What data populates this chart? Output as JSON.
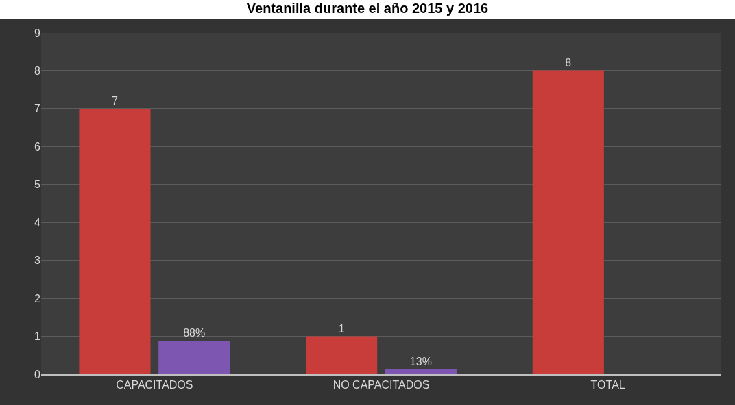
{
  "chart_data": {
    "type": "bar",
    "title": "Ventanilla durante el año 2015 y 2016",
    "categories": [
      "CAPACITADOS",
      "NO CAPACITADOS",
      "TOTAL"
    ],
    "series": [
      {
        "color": "#c83c3a",
        "values": [
          7,
          1,
          8
        ],
        "value_labels": [
          "7",
          "1",
          "8"
        ]
      },
      {
        "color": "#7c56b0",
        "values": [
          0.88,
          0.13,
          null
        ],
        "value_labels": [
          "88%",
          "13%",
          null
        ]
      }
    ],
    "ylim": [
      0,
      9
    ],
    "yticks": [
      0,
      1,
      2,
      3,
      4,
      5,
      6,
      7,
      8,
      9
    ],
    "grid": "y"
  }
}
